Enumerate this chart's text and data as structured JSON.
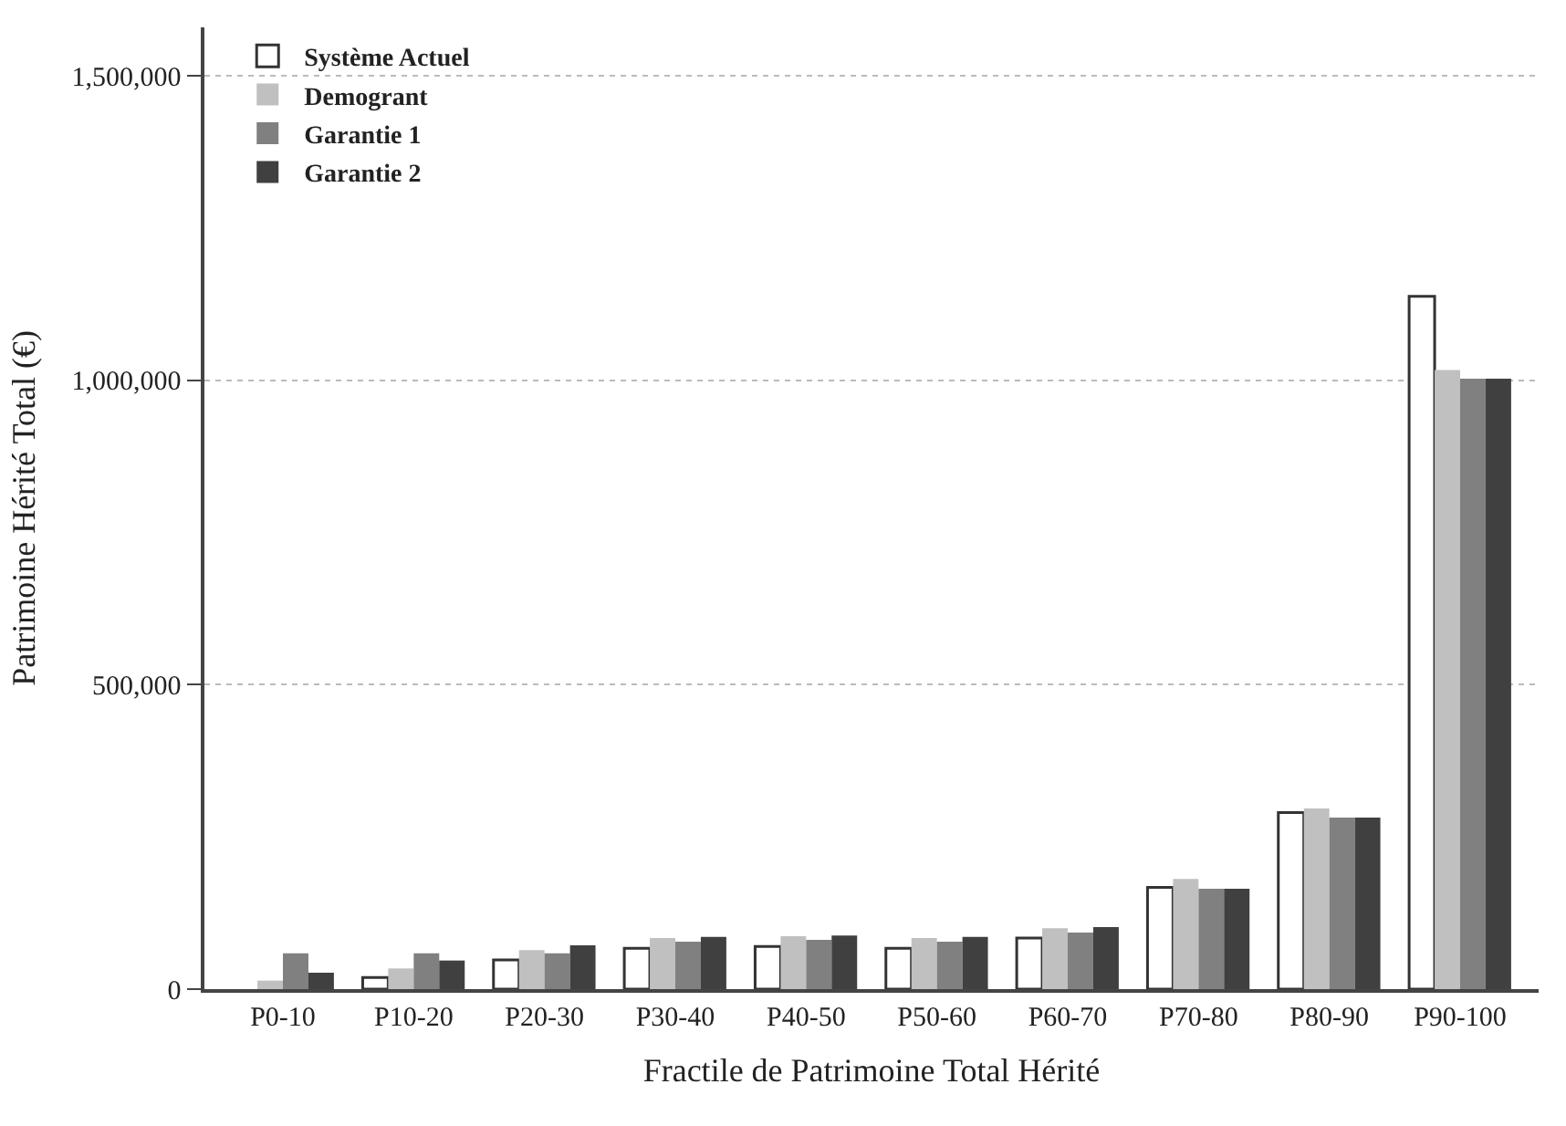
{
  "chart_data": {
    "type": "bar",
    "xlabel": "Fractile de Patrimoine Total Hérité",
    "ylabel": "Patrimoine Hérité Total (€)",
    "categories": [
      "P0-10",
      "P10-20",
      "P20-30",
      "P30-40",
      "P40-50",
      "P50-60",
      "P60-70",
      "P70-80",
      "P80-90",
      "P90-100"
    ],
    "series": [
      {
        "name": "Système Actuel",
        "color": "#ffffff",
        "values": [
          null,
          19000,
          48000,
          67000,
          70000,
          67000,
          84000,
          167000,
          290000,
          1138000
        ]
      },
      {
        "name": "Demogrant",
        "color": "#c0c0c0",
        "values": [
          14000,
          34000,
          64000,
          84000,
          87000,
          84000,
          100000,
          181000,
          297000,
          1017000
        ]
      },
      {
        "name": "Garantie 1",
        "color": "#808080",
        "values": [
          59000,
          59000,
          59000,
          78000,
          81000,
          78000,
          93000,
          165000,
          282000,
          1003000
        ]
      },
      {
        "name": "Garantie 2",
        "color": "#404040",
        "values": [
          27000,
          47000,
          72000,
          86000,
          88000,
          86000,
          102000,
          165000,
          282000,
          1003000
        ]
      }
    ],
    "ylim": [
      0,
      1580000
    ],
    "yticks": [
      {
        "value": 0,
        "label": "0"
      },
      {
        "value": 500000,
        "label": "500,000"
      },
      {
        "value": 1000000,
        "label": "1,000,000"
      },
      {
        "value": 1500000,
        "label": "1,500,000"
      }
    ],
    "grid": "y",
    "legend": "top left"
  }
}
